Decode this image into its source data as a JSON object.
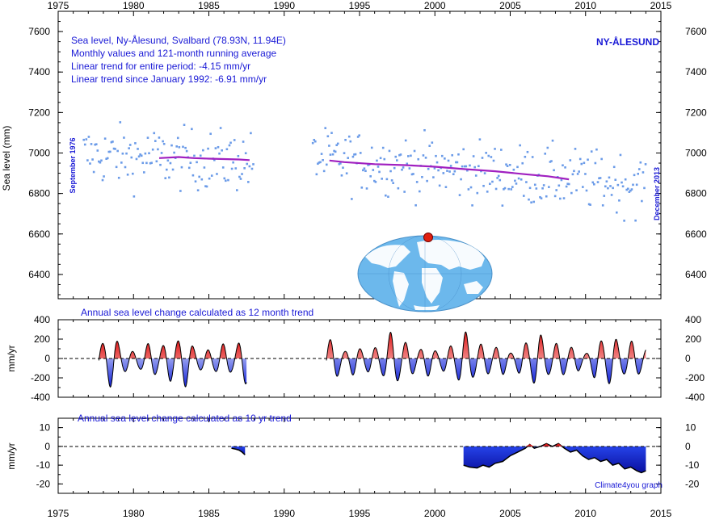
{
  "chart_data": [
    {
      "type": "scatter",
      "panel": "sea-level",
      "title_lines": [
        "Sea level, Ny-Ålesund, Svalbard (78.93N, 11.94E)",
        "Monthly values and 121-month running average",
        "Linear trend for entire period: -4.15 mm/yr",
        "Linear trend since January 1992: -6.91 mm/yr"
      ],
      "station_label": "NY-ÅLESUND",
      "start_label": "September 1976",
      "end_label": "December 2013",
      "ylabel": "Sea level (mm)",
      "xlim": [
        1975,
        2015
      ],
      "ylim": [
        6280,
        7700
      ],
      "x_ticks": [
        1975,
        1980,
        1985,
        1990,
        1995,
        2000,
        2005,
        2010,
        2015
      ],
      "y_ticks": [
        6400,
        6600,
        6800,
        7000,
        7200,
        7400,
        7600
      ],
      "point_color": "#6b9be8",
      "running_avg_color": "#a020c0",
      "running_average": [
        {
          "segment": [
            [
              1981.7,
              6975
            ],
            [
              1983.0,
              6980
            ],
            [
              1984.0,
              6975
            ],
            [
              1985.0,
              6972
            ],
            [
              1986.0,
              6970
            ],
            [
              1987.0,
              6968
            ],
            [
              1987.7,
              6965
            ]
          ]
        },
        {
          "segment": [
            [
              1993.0,
              6963
            ],
            [
              1994.0,
              6955
            ],
            [
              1996.0,
              6945
            ],
            [
              1998.0,
              6940
            ],
            [
              2000.0,
              6932
            ],
            [
              2002.0,
              6920
            ],
            [
              2004.0,
              6910
            ],
            [
              2006.0,
              6895
            ],
            [
              2007.5,
              6885
            ],
            [
              2008.9,
              6870
            ]
          ]
        }
      ]
    },
    {
      "type": "area",
      "panel": "annual-12month",
      "title": "Annual sea level change calculated as 12 month trend",
      "ylabel": "mm/yr",
      "xlim": [
        1975,
        2015
      ],
      "ylim": [
        -400,
        400
      ],
      "y_ticks": [
        -400,
        -200,
        0,
        200,
        400
      ],
      "positive_color": "#e02020",
      "negative_color": "#2030e0",
      "segments": [
        [
          1977.7,
          1987.5
        ],
        [
          1992.8,
          2014.0
        ]
      ]
    },
    {
      "type": "area",
      "panel": "annual-10yr",
      "title": "Annual sea level change calculated as 10 yr trend",
      "ylabel": "mm/yr",
      "xlim": [
        1975,
        2015
      ],
      "ylim": [
        -25,
        15
      ],
      "y_ticks": [
        -20,
        -10,
        0,
        10
      ],
      "credit": "Climate4you graph",
      "series_small": [
        [
          1986.5,
          -1
        ],
        [
          1986.8,
          -1.5
        ],
        [
          1987.0,
          -2
        ],
        [
          1987.2,
          -3
        ],
        [
          1987.4,
          -4.5
        ]
      ],
      "series_main": [
        [
          2001.9,
          -10
        ],
        [
          2002.3,
          -11
        ],
        [
          2002.8,
          -11.5
        ],
        [
          2003.2,
          -10
        ],
        [
          2003.6,
          -11
        ],
        [
          2004.0,
          -9
        ],
        [
          2004.5,
          -8
        ],
        [
          2005.0,
          -5
        ],
        [
          2005.5,
          -3
        ],
        [
          2006.0,
          -1
        ],
        [
          2006.3,
          1
        ],
        [
          2006.6,
          -1
        ],
        [
          2007.0,
          0
        ],
        [
          2007.4,
          1.5
        ],
        [
          2007.8,
          0
        ],
        [
          2008.2,
          1.5
        ],
        [
          2008.6,
          -1
        ],
        [
          2009.0,
          -3
        ],
        [
          2009.4,
          -2
        ],
        [
          2009.8,
          -5
        ],
        [
          2010.2,
          -7
        ],
        [
          2010.6,
          -6
        ],
        [
          2011.0,
          -8
        ],
        [
          2011.4,
          -7
        ],
        [
          2011.8,
          -10
        ],
        [
          2012.2,
          -9
        ],
        [
          2012.6,
          -12
        ],
        [
          2013.0,
          -11
        ],
        [
          2013.4,
          -13
        ],
        [
          2013.7,
          -14
        ],
        [
          2014.0,
          -13
        ]
      ]
    }
  ]
}
